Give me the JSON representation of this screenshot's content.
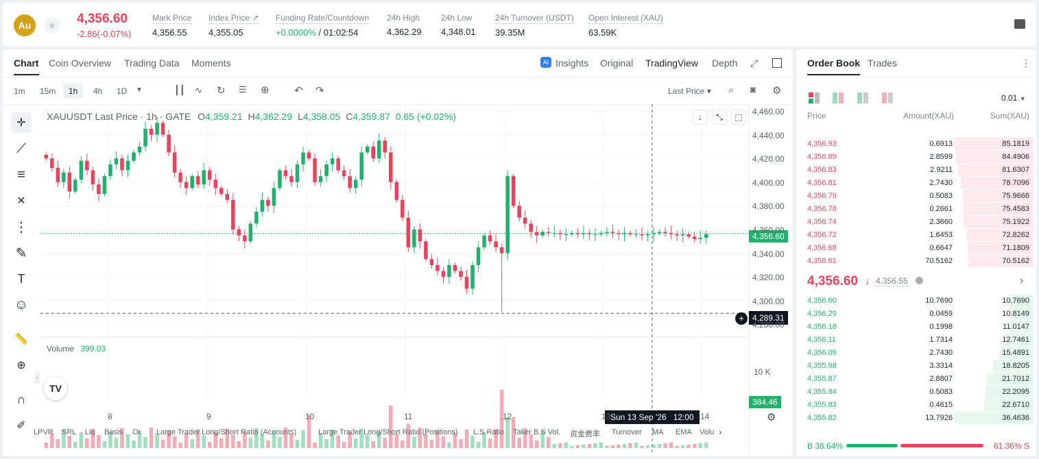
{
  "header": {
    "symbol_badge": "Au",
    "last_price": "4,356.60",
    "change": "-2.86(-0.07%)",
    "stats": [
      {
        "label": "Mark Price",
        "value": "4,356.55"
      },
      {
        "label": "Index Price ↗",
        "value": "4,355.05"
      },
      {
        "label": "Funding Rate/Countdown",
        "value": "+0.0000%",
        "value2": "/ 01:02:54"
      },
      {
        "label": "24h High",
        "value": "4,362.29"
      },
      {
        "label": "24h Low",
        "value": "4,348.01"
      },
      {
        "label": "24h Turnover (USDT)",
        "value": "39.35M"
      },
      {
        "label": "Open Interest (XAU)",
        "value": "63.59K"
      }
    ]
  },
  "chart_tabs": [
    "Chart",
    "Coin Overview",
    "Trading Data",
    "Moments"
  ],
  "chart_views": {
    "insights": "Insights",
    "original": "Original",
    "tradingview": "TradingView",
    "depth": "Depth"
  },
  "timeframes": [
    "1m",
    "15m",
    "1h",
    "4h",
    "1D"
  ],
  "price_type": "Last Price",
  "legend": {
    "title": "XAUUSDT Last Price · 1h · GATE",
    "o": "4,359.21",
    "h": "4,362.29",
    "l": "4,358.05",
    "c": "4,359.87",
    "chg": "0.65 (+0.02%)",
    "volume_label": "Volume",
    "volume_value": "399.03"
  },
  "crosshair": {
    "price": "4,289.31",
    "time": "Sun 13 Sep '26   12:00",
    "volume": "384.46"
  },
  "current_price_tag": "4,356.60",
  "vol_axis_label": "10 K",
  "bottom_indicators": [
    "LPVR",
    "SRL",
    "Liq",
    "Basis",
    "OI",
    "Large Trader Long/Short Ratio (Accounts)",
    "Large Trader Long/Short Ratio (Positions)",
    "L.S Ratio",
    "Taker B.S Vol.",
    "资金费率",
    "Turnover",
    "MA",
    "EMA",
    "Volu"
  ],
  "chart_data": {
    "type": "candlestick",
    "title": "XAUUSDT Last Price · 1h · GATE",
    "y_ticks": [
      "4,460.00",
      "4,440.00",
      "4,420.00",
      "4,400.00",
      "4,380.00",
      "4,360.00",
      "4,340.00",
      "4,320.00",
      "4,300.00",
      "4,280.00"
    ],
    "ylim": [
      4275,
      4465
    ],
    "x_ticks": [
      "8",
      "9",
      "10",
      "11",
      "12",
      "13",
      "14"
    ],
    "close_path": [
      4420,
      4412,
      4400,
      4408,
      4392,
      4402,
      4418,
      4410,
      4398,
      4390,
      4405,
      4415,
      4420,
      4410,
      4418,
      4425,
      4430,
      4445,
      4440,
      4450,
      4440,
      4425,
      4408,
      4400,
      4395,
      4405,
      4398,
      4410,
      4402,
      4395,
      4390,
      4385,
      4360,
      4355,
      4350,
      4365,
      4375,
      4385,
      4380,
      4395,
      4410,
      4405,
      4400,
      4415,
      4425,
      4420,
      4400,
      4405,
      4415,
      4420,
      4410,
      4405,
      4395,
      4402,
      4425,
      4430,
      4420,
      4435,
      4425,
      4400,
      4385,
      4370,
      4345,
      4360,
      4350,
      4335,
      4330,
      4325,
      4320,
      4330,
      4325,
      4320,
      4310,
      4330,
      4345,
      4355,
      4350,
      4345,
      4340,
      4405,
      4380,
      4370,
      4365,
      4358,
      4355,
      4358,
      4357,
      4357,
      4356,
      4356,
      4357,
      4356,
      4357,
      4356,
      4356,
      4357,
      4358,
      4357,
      4356,
      4357,
      4356,
      4356,
      4355,
      4356,
      4357,
      4358,
      4357,
      4356,
      4355,
      4356,
      4354,
      4352,
      4353,
      4356
    ],
    "volume_axis": "10 K"
  },
  "orderbook": {
    "tabs": [
      "Order Book",
      "Trades"
    ],
    "precision": "0.01",
    "headers": [
      "Price",
      "Amount(XAU)",
      "Sum(XAU)"
    ],
    "asks": [
      [
        "4,356.93",
        "0.6913",
        "85.1819"
      ],
      [
        "4,356.89",
        "2.8599",
        "84.4906"
      ],
      [
        "4,356.83",
        "2.9211",
        "81.6307"
      ],
      [
        "4,356.81",
        "2.7430",
        "78.7096"
      ],
      [
        "4,356.79",
        "0.5083",
        "75.9666"
      ],
      [
        "4,356.78",
        "0.2661",
        "75.4583"
      ],
      [
        "4,356.74",
        "2.3660",
        "75.1922"
      ],
      [
        "4,356.72",
        "1.6453",
        "72.8262"
      ],
      [
        "4,356.68",
        "0.6647",
        "71.1809"
      ],
      [
        "4,356.61",
        "70.5162",
        "70.5162"
      ]
    ],
    "mid_price": "4,356.60",
    "mid_arrow": "↓",
    "mid_mark": "4,356.55",
    "bids": [
      [
        "4,356.60",
        "10.7690",
        "10.7690"
      ],
      [
        "4,356.29",
        "0.0459",
        "10.8149"
      ],
      [
        "4,356.18",
        "0.1998",
        "11.0147"
      ],
      [
        "4,356.11",
        "1.7314",
        "12.7461"
      ],
      [
        "4,356.09",
        "2.7430",
        "15.4891"
      ],
      [
        "4,355.98",
        "3.3314",
        "18.8205"
      ],
      [
        "4,355.87",
        "2.8807",
        "21.7012"
      ],
      [
        "4,355.84",
        "0.5083",
        "22.2095"
      ],
      [
        "4,355.83",
        "0.4615",
        "22.6710"
      ],
      [
        "4,355.82",
        "13.7926",
        "36.4636"
      ]
    ],
    "ask_depth_frac": [
      1.0,
      0.99,
      0.958,
      0.924,
      0.892,
      0.886,
      0.883,
      0.855,
      0.836,
      0.828
    ],
    "bid_depth_frac": [
      0.295,
      0.297,
      0.302,
      0.35,
      0.425,
      0.516,
      0.595,
      0.61,
      0.622,
      1.0
    ],
    "buy_ratio": "B 38.64%",
    "sell_ratio": "61.36% S",
    "buy_frac": 0.3864,
    "colors": {
      "up": "#20b26c",
      "down": "#e8435a"
    }
  }
}
